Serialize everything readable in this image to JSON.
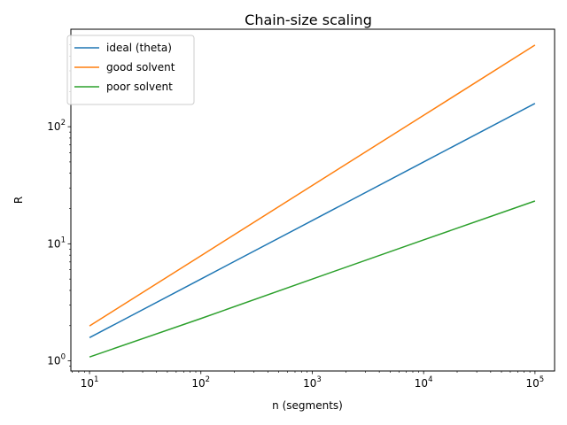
{
  "chart_data": {
    "type": "line",
    "title": "Chain-size scaling",
    "xlabel": "n (segments)",
    "ylabel": "R",
    "xscale": "log",
    "yscale": "log",
    "xlim": [
      6.8,
      150000
    ],
    "ylim": [
      0.82,
      680
    ],
    "x_ticks": [
      {
        "value": 10,
        "base": "10",
        "exp": "1"
      },
      {
        "value": 100,
        "base": "10",
        "exp": "2"
      },
      {
        "value": 1000,
        "base": "10",
        "exp": "3"
      },
      {
        "value": 10000,
        "base": "10",
        "exp": "4"
      },
      {
        "value": 100000,
        "base": "10",
        "exp": "5"
      }
    ],
    "y_ticks": [
      {
        "value": 1,
        "base": "10",
        "exp": "0"
      },
      {
        "value": 10,
        "base": "10",
        "exp": "1"
      },
      {
        "value": 100,
        "base": "10",
        "exp": "2"
      }
    ],
    "grid": false,
    "legend_position": "upper-left",
    "series": [
      {
        "name": "ideal (theta)",
        "color": "#1f77b4",
        "x": [
          10,
          100,
          1000,
          10000,
          100000
        ],
        "y": [
          1.58,
          5.0,
          15.8,
          50.0,
          158
        ]
      },
      {
        "name": "good solvent",
        "color": "#ff7f0e",
        "x": [
          10,
          100,
          1000,
          10000,
          100000
        ],
        "y": [
          1.99,
          7.9,
          31.5,
          125,
          498
        ]
      },
      {
        "name": "poor solvent",
        "color": "#2ca02c",
        "x": [
          10,
          100,
          1000,
          10000,
          100000
        ],
        "y": [
          1.08,
          2.3,
          5.0,
          10.8,
          23.2
        ]
      }
    ]
  }
}
